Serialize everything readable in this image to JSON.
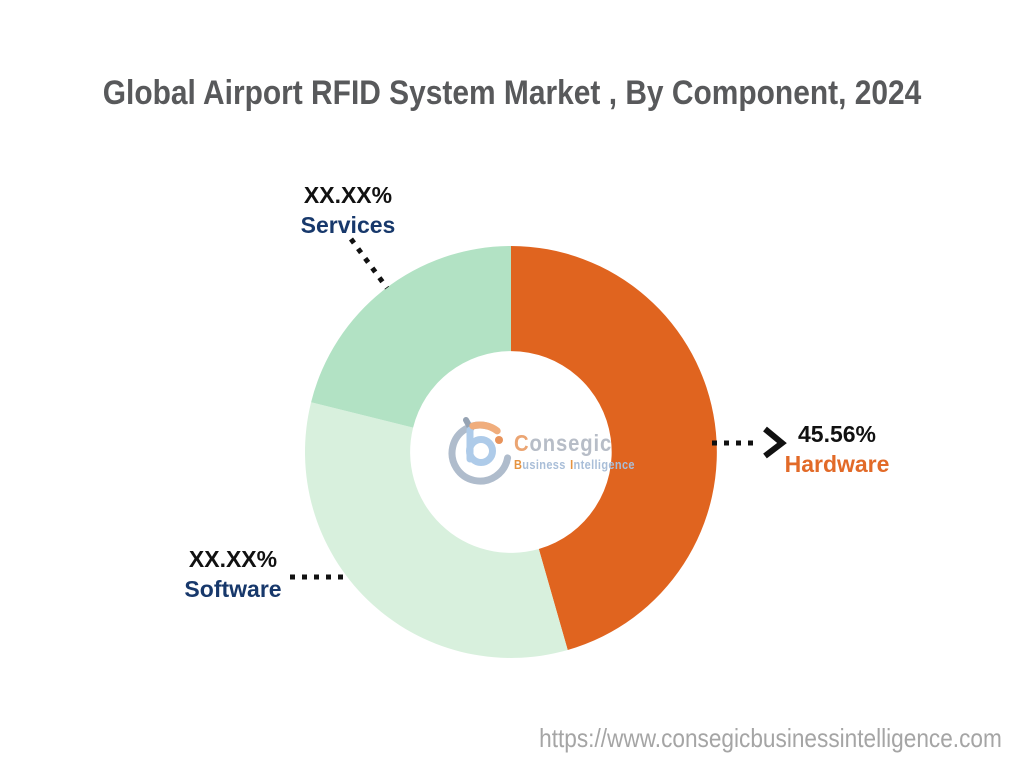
{
  "title": "Global Airport RFID System Market , By Component, 2024",
  "chart_data": {
    "type": "pie",
    "subtype": "donut",
    "title": "Global Airport RFID System Market , By Component, 2024",
    "categories": [
      "Hardware",
      "Software",
      "Services"
    ],
    "values": [
      45.56,
      33.33,
      21.11
    ],
    "displayed_labels": [
      "45.56%",
      "XX.XX%",
      "XX.XX%"
    ],
    "slice_colors": [
      "#E0641F",
      "#D8F0DD",
      "#B2E2C4"
    ],
    "start_angle_deg": 0,
    "direction": "clockwise",
    "donut_hole_ratio": 0.49,
    "legend_position": "none",
    "label_style": "outside-callouts-with-dotted-leader-lines"
  },
  "callouts": {
    "hardware": {
      "percent": "45.56%",
      "label": "Hardware",
      "label_color": "#E26A28"
    },
    "software": {
      "percent": "XX.XX%",
      "label": "Software",
      "label_color": "#17386B"
    },
    "services": {
      "percent": "XX.XX%",
      "label": "Services",
      "label_color": "#17386B"
    }
  },
  "watermark": {
    "brand_initial": "C",
    "brand_rest": "onsegic",
    "tagline_word1_initial": "B",
    "tagline_word1_rest": "usiness",
    "tagline_word2_initial": "I",
    "tagline_word2_rest": "ntelligence"
  },
  "footer": {
    "url": "https://www.consegicbusinessintelligence.com"
  },
  "colors": {
    "title_text": "#58595B",
    "percent_text": "#111111",
    "leader_line": "#111111",
    "url_text": "#A5A5A5",
    "background": "#FFFFFF"
  }
}
